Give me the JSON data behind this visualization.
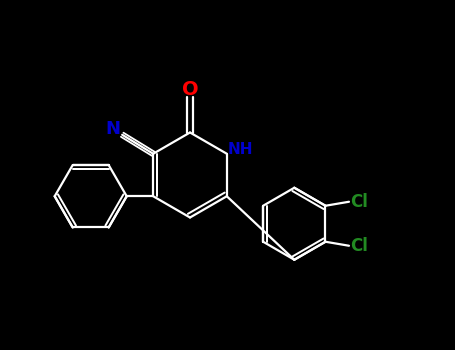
{
  "background_color": "#000000",
  "bond_color": "#ffffff",
  "atom_colors": {
    "N": "#0000cd",
    "O": "#ff0000",
    "Cl": "#228B22",
    "C": "#ffffff"
  },
  "figsize": [
    4.55,
    3.5
  ],
  "dpi": 100,
  "bond_lw": 1.6,
  "ring_r": 0.75
}
